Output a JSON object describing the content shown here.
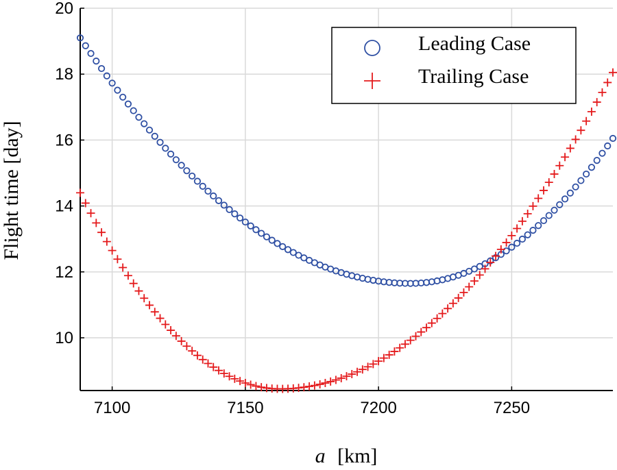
{
  "chart_data": {
    "type": "scatter",
    "title": "",
    "xlabel_var": "a",
    "xlabel_unit": "[km]",
    "ylabel": "Flight time [day]",
    "xlim": [
      7088,
      7288
    ],
    "ylim": [
      8.4,
      20
    ],
    "xticks": [
      7100,
      7150,
      7200,
      7250
    ],
    "yticks": [
      10,
      12,
      14,
      16,
      18,
      20
    ],
    "grid": true,
    "legend_position": "top-right",
    "series": [
      {
        "name": "Leading Case",
        "marker": "circle",
        "color": "#2E4FA3",
        "x_start": 7088,
        "x_end": 7288,
        "x_step": 2,
        "curve": {
          "min_x": 7212,
          "min_y": 11.65,
          "left_y": 19.1,
          "right_y": 16.05
        }
      },
      {
        "name": "Trailing Case",
        "marker": "plus",
        "color": "#E41A1C",
        "x_start": 7088,
        "x_end": 7288,
        "x_step": 2,
        "curve": {
          "min_x": 7163,
          "min_y": 8.45,
          "left_y": 14.4,
          "right_y": 18.05
        }
      }
    ]
  }
}
